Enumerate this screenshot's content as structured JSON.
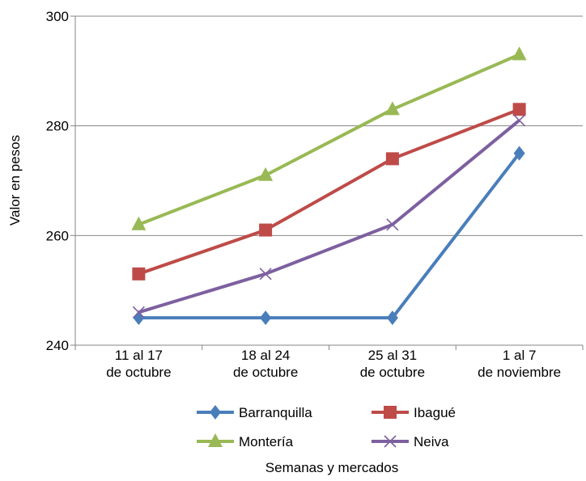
{
  "chart_data": {
    "type": "line",
    "title": "",
    "xlabel": "Semanas y mercados",
    "ylabel": "Valor en pesos",
    "ylim": [
      240,
      300
    ],
    "yticks": [
      "240",
      "260",
      "280",
      "300"
    ],
    "grid": true,
    "legend_placement": "bottom",
    "categories": [
      [
        "11 al 17",
        "de octubre"
      ],
      [
        "18 al 24",
        "de octubre"
      ],
      [
        "25 al 31",
        "de octubre"
      ],
      [
        "1 al 7",
        "de noviembre"
      ]
    ],
    "series": [
      {
        "name": "Barranquilla",
        "values": [
          245,
          245,
          245,
          275
        ],
        "color": "#4a7ebb",
        "marker": "diamond"
      },
      {
        "name": "Ibagué",
        "values": [
          253,
          261,
          274,
          283
        ],
        "color": "#be4b48",
        "marker": "square"
      },
      {
        "name": "Montería",
        "values": [
          262,
          271,
          283,
          293
        ],
        "color": "#98b954",
        "marker": "triangle"
      },
      {
        "name": "Neiva",
        "values": [
          246,
          253,
          262,
          281
        ],
        "color": "#7d60a0",
        "marker": "x"
      }
    ]
  }
}
